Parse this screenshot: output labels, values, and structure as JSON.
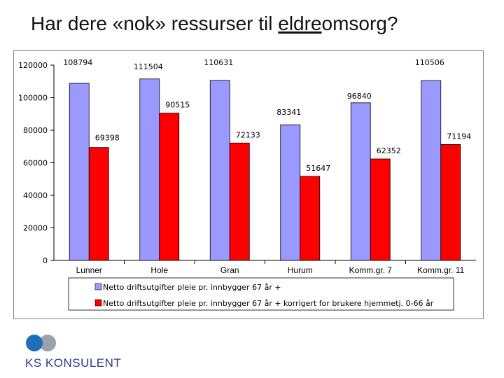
{
  "title": {
    "prefix": "Har dere «nok» ressurser til ",
    "underlined": "eldre",
    "suffix": "omsorg?"
  },
  "logo": {
    "text": "KS KONSULENT",
    "colors": [
      "#1f6fb8",
      "#9aa3ad"
    ]
  },
  "chart_data": {
    "type": "bar",
    "title": "",
    "xlabel": "",
    "ylabel": "",
    "categories": [
      "Lunner",
      "Hole",
      "Gran",
      "Hurum",
      "Komm.gr. 7",
      "Komm.gr. 11"
    ],
    "ylim": [
      0,
      120000
    ],
    "yticks": [
      0,
      20000,
      40000,
      60000,
      80000,
      100000,
      120000
    ],
    "grid": false,
    "legend_position": "bottom",
    "series": [
      {
        "name": "Netto driftsutgifter pleie pr. innbygger 67 år +",
        "color": "#9999ff",
        "values": [
          108794,
          111504,
          110631,
          83341,
          96840,
          110506
        ]
      },
      {
        "name": "Netto driftsutgifter pleie pr. innbygger 67 år + korrigert for brukere hjemmetj. 0-66 år",
        "color": "#ff0000",
        "values": [
          69398,
          90515,
          72133,
          51647,
          62352,
          71194
        ]
      }
    ]
  }
}
